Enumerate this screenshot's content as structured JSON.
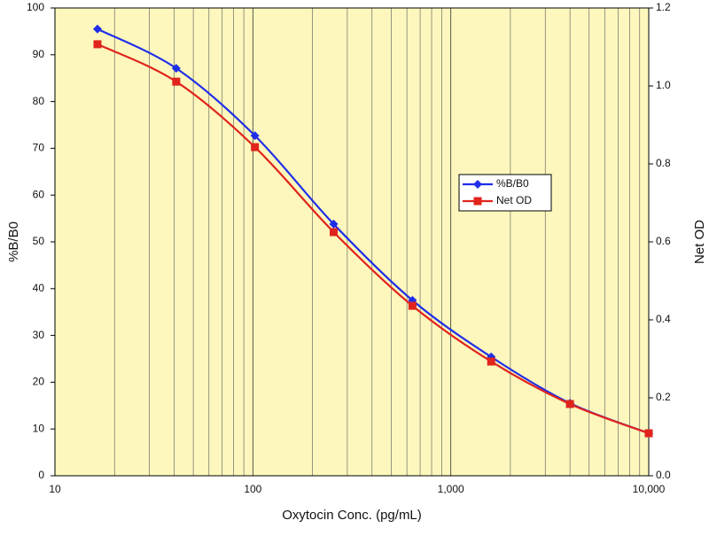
{
  "chart_data": {
    "type": "line",
    "x_label": "Oxytocin Conc. (pg/mL)",
    "y_label": "%B/B0",
    "y2_label": "Net OD",
    "x": [
      16.4,
      41,
      102.4,
      256,
      640,
      1600,
      4000,
      10000
    ],
    "series": [
      {
        "name": "%B/B0",
        "color": "#1f2ee8",
        "marker": "diamond",
        "values": [
          95.5,
          87.1,
          72.7,
          53.8,
          37.5,
          25.4,
          15.5,
          9.1
        ]
      },
      {
        "name": "Net OD",
        "color": "#e0241c",
        "marker": "square",
        "axis": "y2",
        "values": [
          1.107,
          1.011,
          0.843,
          0.625,
          0.436,
          0.293,
          0.184,
          0.109
        ]
      }
    ],
    "xlim": [
      10,
      10000
    ],
    "xticks": [
      10,
      100,
      {
        "value": 1000,
        "label": "1,000"
      },
      {
        "value": 10000,
        "label": "10,000"
      }
    ],
    "xscale": "log",
    "minor_grid": true,
    "ylim": [
      0,
      100
    ],
    "yticks": [
      0,
      10,
      20,
      30,
      40,
      50,
      60,
      70,
      80,
      90,
      100
    ],
    "y2lim": [
      0,
      1.2
    ],
    "y2ticks": [
      {
        "value": 0,
        "label": "0.0"
      },
      0.2,
      0.4,
      0.6,
      0.8,
      {
        "value": 1,
        "label": "1.0"
      },
      1.2
    ],
    "legend": "center right",
    "background": "#fdf7bd"
  }
}
